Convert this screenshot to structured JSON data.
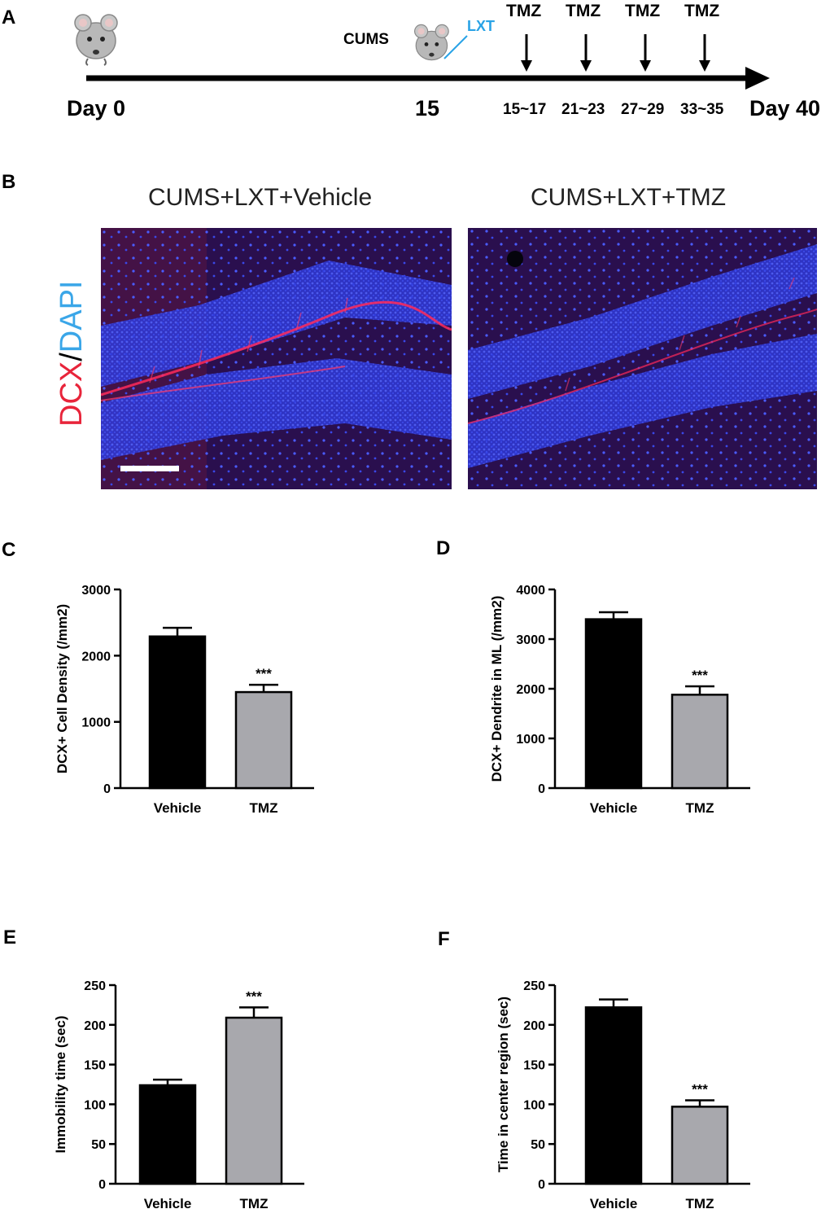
{
  "panel_labels": [
    "A",
    "B",
    "C",
    "D",
    "E",
    "F"
  ],
  "timeline": {
    "start_label": "Day 0",
    "mid_label": "15",
    "end_label": "Day 40",
    "cums_label": "CUMS",
    "lxt_label": "LXT",
    "tmz_label": "TMZ",
    "windows": [
      "15~17",
      "21~23",
      "27~29",
      "33~35"
    ]
  },
  "micrographs": {
    "left_title": "CUMS+LXT+Vehicle",
    "right_title": "CUMS+LXT+TMZ",
    "stain_dcx": "DCX",
    "stain_sep": "/",
    "stain_dapi": "DAPI",
    "colors": {
      "dcx": "#e8243a",
      "dapi": "#3aa6e8",
      "background": "#1a0e5a"
    }
  },
  "chart_data": [
    {
      "id": "C",
      "type": "bar",
      "categories": [
        "Vehicle",
        "TMZ"
      ],
      "values": [
        2290,
        1450
      ],
      "errors": [
        130,
        110
      ],
      "ylabel": "DCX+ Cell Density (/mm2)",
      "ylim": [
        0,
        3000
      ],
      "yticks": [
        0,
        1000,
        2000,
        3000
      ],
      "significance": [
        "",
        "***"
      ],
      "colors": [
        "#000000",
        "#a8a8ad"
      ]
    },
    {
      "id": "D",
      "type": "bar",
      "categories": [
        "Vehicle",
        "TMZ"
      ],
      "values": [
        3400,
        1880
      ],
      "errors": [
        140,
        170
      ],
      "ylabel": "DCX+ Dendrite in ML (/mm2)",
      "ylim": [
        0,
        4000
      ],
      "yticks": [
        0,
        1000,
        2000,
        3000,
        4000
      ],
      "significance": [
        "",
        "***"
      ],
      "colors": [
        "#000000",
        "#a8a8ad"
      ]
    },
    {
      "id": "E",
      "type": "bar",
      "categories": [
        "Vehicle",
        "TMZ"
      ],
      "values": [
        124,
        209
      ],
      "errors": [
        7,
        13
      ],
      "ylabel": "Immobility time (sec)",
      "ylim": [
        0,
        250
      ],
      "yticks": [
        0,
        50,
        100,
        150,
        200,
        250
      ],
      "significance": [
        "",
        "***"
      ],
      "colors": [
        "#000000",
        "#a8a8ad"
      ]
    },
    {
      "id": "F",
      "type": "bar",
      "categories": [
        "Vehicle",
        "TMZ"
      ],
      "values": [
        222,
        97
      ],
      "errors": [
        10,
        8
      ],
      "ylabel": "Time in center region (sec)",
      "ylim": [
        0,
        250
      ],
      "yticks": [
        0,
        50,
        100,
        150,
        200,
        250
      ],
      "significance": [
        "",
        "***"
      ],
      "colors": [
        "#000000",
        "#a8a8ad"
      ]
    }
  ]
}
